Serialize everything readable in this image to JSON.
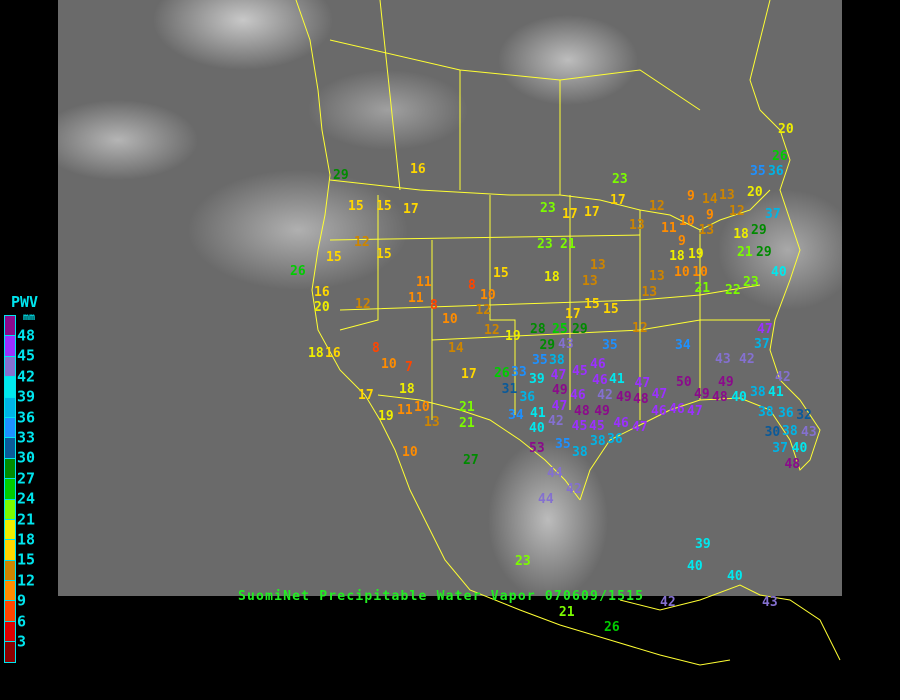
{
  "title": "SuomiNet Precipitable Water Vapor 070609/1515",
  "legend": {
    "title": "PWV",
    "unit": "mm",
    "labels": [
      "48",
      "45",
      "42",
      "39",
      "36",
      "33",
      "30",
      "27",
      "24",
      "21",
      "18",
      "15",
      "12",
      "9",
      "6",
      "3"
    ],
    "colors": [
      "#8b0a8b",
      "#9b30ff",
      "#8470d0",
      "#00e8ee",
      "#00b4e6",
      "#1e90ff",
      "#0a5a9a",
      "#008b00",
      "#00cd00",
      "#7cfc00",
      "#eeee00",
      "#ffd700",
      "#cd8500",
      "#ff8c00",
      "#ff4500",
      "#dd0000",
      "#8b0000"
    ]
  },
  "stations": [
    20,
    26,
    35,
    36,
    29,
    16,
    23,
    20,
    15,
    15,
    17,
    23,
    17,
    17,
    17,
    9,
    13,
    12,
    12,
    9,
    14,
    13,
    11,
    10,
    13,
    12,
    15,
    15,
    23,
    21,
    9,
    19,
    18,
    29,
    37,
    21,
    18,
    29,
    40,
    26,
    16,
    20,
    12,
    11,
    11,
    8,
    8,
    10,
    12,
    15,
    18,
    13,
    13,
    13,
    13,
    10,
    10,
    21,
    22,
    23,
    12,
    10,
    19,
    17,
    15,
    15,
    12,
    18,
    16,
    8,
    10,
    7,
    14,
    17,
    26,
    33,
    31,
    39,
    37,
    47,
    35,
    34,
    43,
    42,
    28,
    25,
    29,
    29,
    35,
    38,
    43,
    47,
    45,
    46,
    46,
    41,
    42,
    49,
    47,
    36,
    41,
    46,
    48,
    49,
    49,
    48,
    47,
    34,
    40,
    42,
    45,
    45,
    35,
    38,
    38,
    36,
    46,
    47,
    50,
    49,
    48,
    49,
    40,
    38,
    41,
    42,
    46,
    46,
    47,
    47,
    38,
    36,
    38,
    32,
    43,
    30,
    37,
    40,
    48,
    53,
    44,
    42,
    44,
    17,
    19,
    11,
    10,
    18,
    13,
    21,
    21,
    27,
    10,
    23,
    39,
    40,
    40,
    42,
    43,
    21,
    26
  ]
}
